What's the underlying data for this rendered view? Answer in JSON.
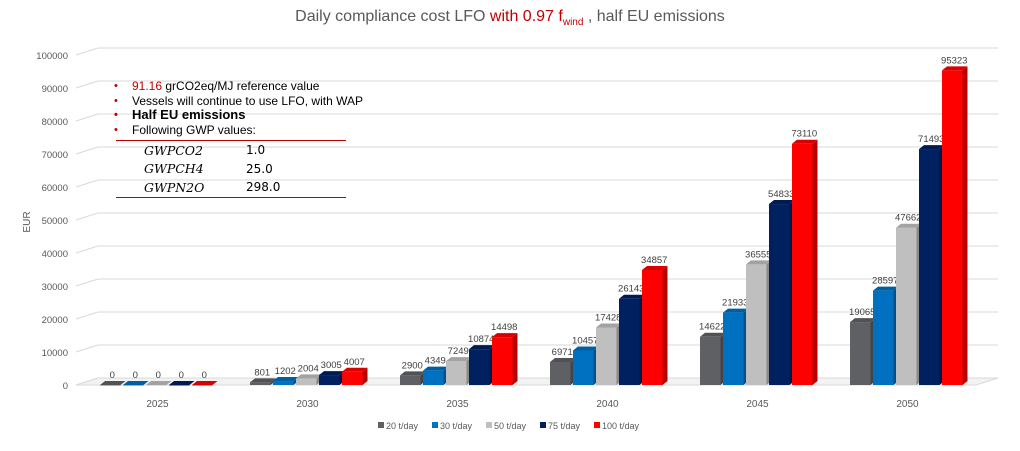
{
  "title": {
    "prefix": "Daily compliance cost LFO ",
    "highlight": "with 0.97 f",
    "highlight_sub": "wind",
    "suffix": " , half EU emissions"
  },
  "notes": {
    "bullet1_value": "91.16",
    "bullet1_rest": " grCO2eq/MJ reference value",
    "bullet2": "Vessels will continue to use LFO, with WAP",
    "bullet3": "Half EU emissions",
    "bullet4": "Following GWP values:"
  },
  "gwp_table": [
    {
      "name": "GWPCO2",
      "value": "1.0"
    },
    {
      "name": "GWPCH4",
      "value": "25.0"
    },
    {
      "name": "GWPN2O",
      "value": "298.0"
    }
  ],
  "chart_data": {
    "type": "bar",
    "title": "Daily compliance cost LFO with 0.97 fwind , half EU emissions",
    "ylabel": "EUR",
    "xlabel": "",
    "ylim": [
      0,
      100000
    ],
    "yticks": [
      0,
      10000,
      20000,
      30000,
      40000,
      50000,
      60000,
      70000,
      80000,
      90000,
      100000
    ],
    "grid": true,
    "legend_position": "bottom",
    "categories": [
      "2025",
      "2030",
      "2035",
      "2040",
      "2045",
      "2050"
    ],
    "series": [
      {
        "name": "20 t/day",
        "color": "#5f6064",
        "values": [
          0,
          801,
          2900,
          6971,
          14622,
          19065
        ]
      },
      {
        "name": "30 t/day",
        "color": "#0070c0",
        "values": [
          0,
          1202,
          4349,
          10457,
          21933,
          28597
        ]
      },
      {
        "name": "50 t/day",
        "color": "#bfbfbf",
        "values": [
          0,
          2004,
          7249,
          17428,
          36555,
          47662
        ]
      },
      {
        "name": "75 t/day",
        "color": "#002060",
        "values": [
          0,
          3005,
          10874,
          26143,
          54833,
          71493
        ]
      },
      {
        "name": "100 t/day",
        "color": "#ff0000",
        "values": [
          0,
          4007,
          14498,
          34857,
          73110,
          95323
        ]
      }
    ]
  }
}
